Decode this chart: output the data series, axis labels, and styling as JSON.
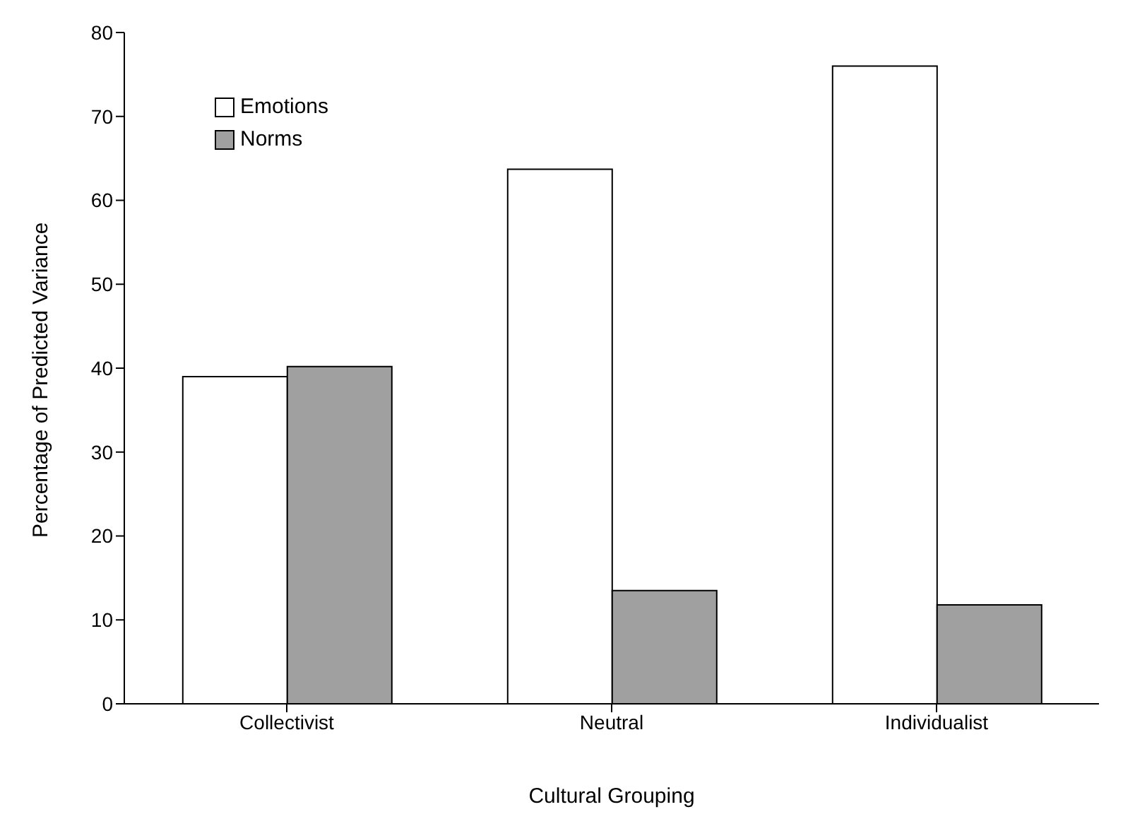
{
  "chart_data": {
    "type": "bar",
    "xlabel": "Cultural Grouping",
    "ylabel": "Percentage of Predicted Variance",
    "categories": [
      "Collectivist",
      "Neutral",
      "Individualist"
    ],
    "series": [
      {
        "name": "Emotions",
        "color": "#ffffff",
        "values": [
          39,
          63.7,
          76
        ]
      },
      {
        "name": "Norms",
        "color": "#a0a0a0",
        "values": [
          40.2,
          13.5,
          11.8
        ]
      }
    ],
    "ylim": [
      0,
      80
    ],
    "yticks": [
      0,
      10,
      20,
      30,
      40,
      50,
      60,
      70,
      80
    ],
    "grid": false,
    "legend": "top left"
  }
}
